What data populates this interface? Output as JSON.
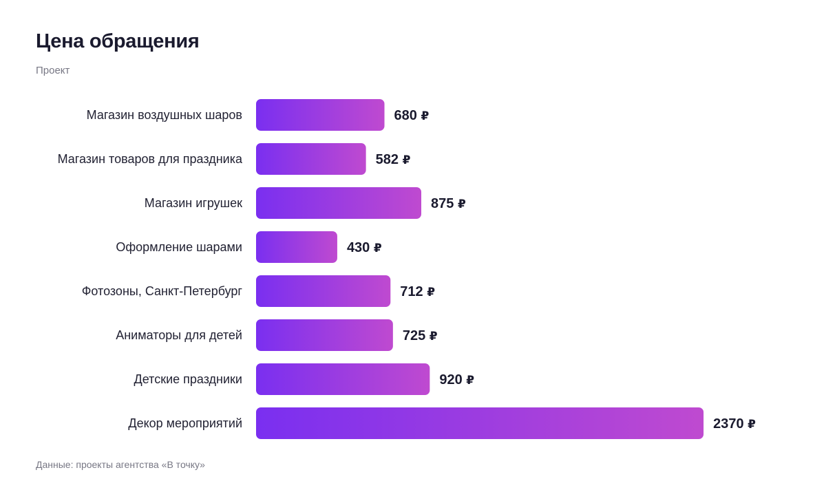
{
  "title": "Цена обращения",
  "subtitle": "Проект",
  "footer": "Данные: проекты агентства «В точку»",
  "colors": {
    "bar_start": "#7a2ff0",
    "bar_end": "#bf4ad0",
    "text": "#1a1a2e",
    "muted": "#777784"
  },
  "chart_data": {
    "type": "bar",
    "orientation": "horizontal",
    "title": "Цена обращения",
    "subtitle": "Проект",
    "categories": [
      "Магазин воздушных шаров",
      "Магазин товаров для праздника",
      "Магазин игрушек",
      "Оформление шарами",
      "Фотозоны, Санкт-Петербург",
      "Аниматоры для детей",
      "Детские праздники",
      "Декор мероприятий"
    ],
    "values": [
      680,
      582,
      875,
      430,
      712,
      725,
      920,
      2370
    ],
    "value_suffix": "₽",
    "grid": false,
    "legend": "none"
  }
}
